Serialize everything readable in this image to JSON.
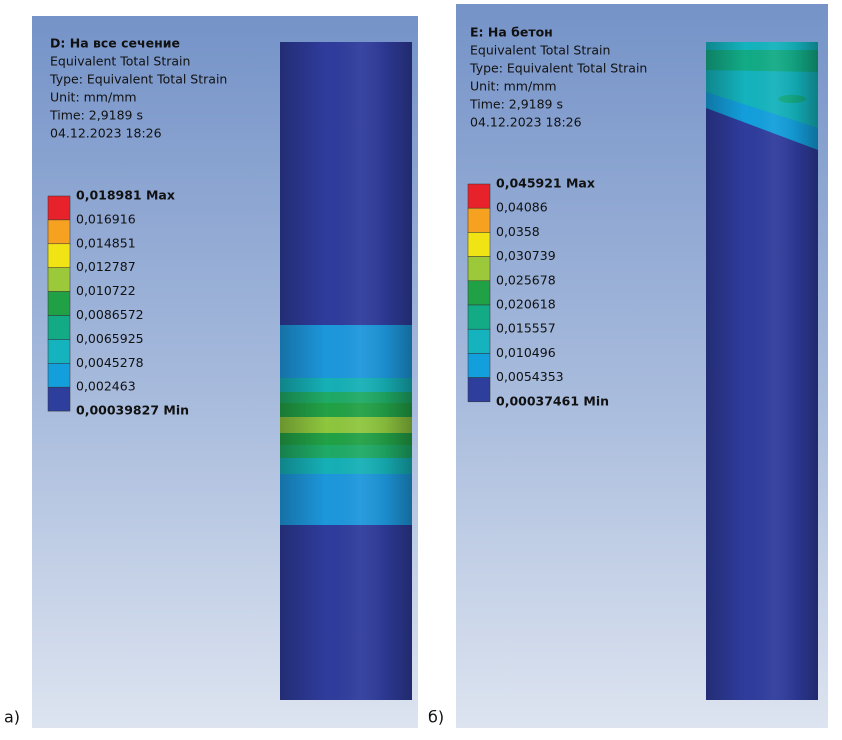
{
  "panels": [
    {
      "label": "а)",
      "title": "D: На все сечение",
      "lines": [
        "Equivalent Total Strain",
        "Type: Equivalent Total Strain",
        "Unit: mm/mm",
        "Time: 2,9189 s",
        "04.12.2023 18:26"
      ],
      "legend": [
        "0,018981 Max",
        "0,016916",
        "0,014851",
        "0,012787",
        "0,010722",
        "0,0086572",
        "0,0065925",
        "0,0045278",
        "0,002463",
        "0,00039827 Min"
      ]
    },
    {
      "label": "б)",
      "title": "E: На бетон",
      "lines": [
        "Equivalent Total Strain",
        "Type: Equivalent Total Strain",
        "Unit: mm/mm",
        "Time: 2,9189 s",
        "04.12.2023 18:26"
      ],
      "legend": [
        "0,045921 Max",
        "0,04086",
        "0,0358",
        "0,030739",
        "0,025678",
        "0,020618",
        "0,015557",
        "0,010496",
        "0,0054353",
        "0,00037461 Min"
      ]
    }
  ]
}
